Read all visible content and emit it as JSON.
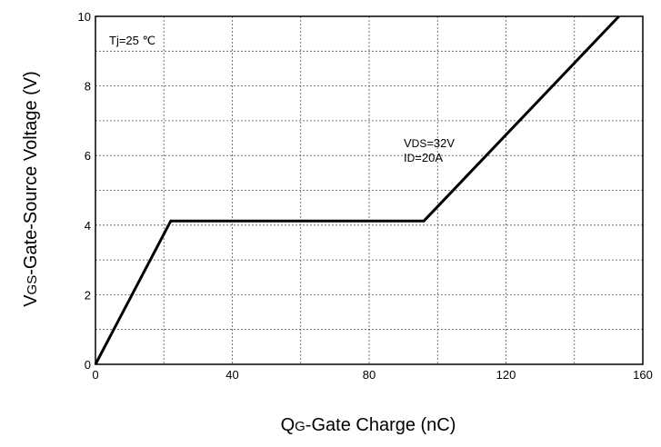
{
  "chart_data": {
    "type": "line",
    "xlabel": {
      "main": "Q",
      "sub": "G",
      "rest": "-Gate Charge (nC)"
    },
    "ylabel": {
      "main": "V",
      "sub": "GS",
      "rest": "-Gate-Source Voltage (V)"
    },
    "xlim": [
      0,
      160
    ],
    "ylim": [
      0,
      10
    ],
    "x_ticks": [
      0,
      40,
      80,
      120,
      160
    ],
    "y_ticks": [
      0,
      2,
      4,
      6,
      8,
      10
    ],
    "grid": true,
    "annotations": {
      "condition": "Tj=25 ℃",
      "vds": {
        "main": "V",
        "sub": "DS",
        "rest": "=32V"
      },
      "id": {
        "main": "I",
        "sub": "D",
        "rest": "=20A"
      }
    },
    "series": [
      {
        "color": "#000000",
        "x": [
          0,
          22,
          96,
          153
        ],
        "y": [
          0,
          4.12,
          4.12,
          10
        ]
      }
    ]
  }
}
